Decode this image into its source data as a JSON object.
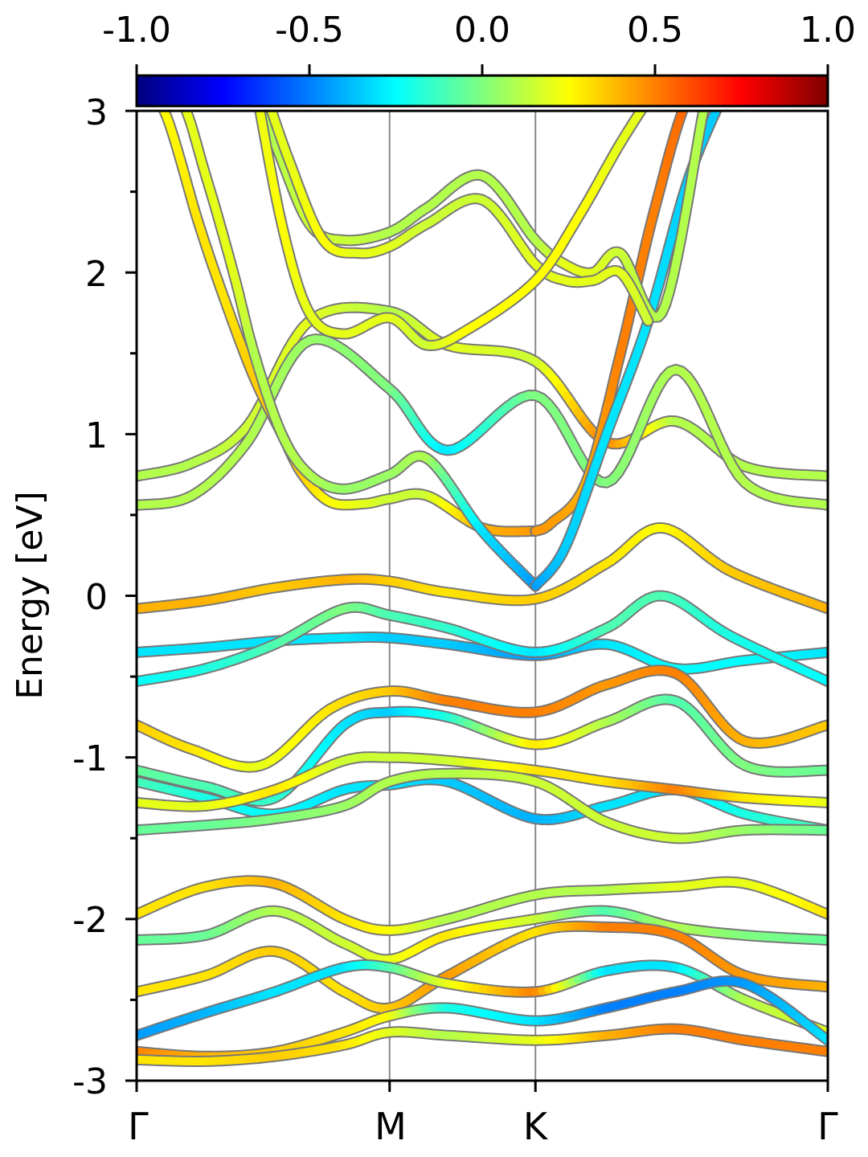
{
  "chart_data": {
    "type": "line",
    "title": "",
    "xlabel": "",
    "ylabel": "Energy [eV]",
    "xlim": [
      0,
      1
    ],
    "ylim": [
      -3,
      3
    ],
    "x_ticks": [
      {
        "label": "Γ",
        "x": 0.0
      },
      {
        "label": "M",
        "x": 0.366
      },
      {
        "label": "K",
        "x": 0.577
      },
      {
        "label": "Γ",
        "x": 1.0
      }
    ],
    "y_ticks": [
      {
        "label": "3",
        "value": 3
      },
      {
        "label": "2",
        "value": 2
      },
      {
        "label": "1",
        "value": 1
      },
      {
        "label": "0",
        "value": 0
      },
      {
        "label": "-1",
        "value": -1
      },
      {
        "label": "-2",
        "value": -2
      },
      {
        "label": "-3",
        "value": -3
      }
    ],
    "colorbar": {
      "ticks": [
        "-1.0",
        "-0.5",
        "0.0",
        "0.5",
        "1.0"
      ],
      "range": [
        -1,
        1
      ],
      "colormap": "jet"
    },
    "colormap_stops": [
      "#00007f",
      "#0000ff",
      "#007fff",
      "#00ffff",
      "#7fff7f",
      "#ffff00",
      "#ff7f00",
      "#ff0000",
      "#7f0000"
    ],
    "band_outline_color": "#777777",
    "series": [
      {
        "x": [
          0,
          0.08,
          0.16,
          0.25,
          0.366,
          0.45,
          0.577,
          0.68,
          0.78,
          0.88,
          1.0
        ],
        "y": [
          0.74,
          0.82,
          1.05,
          1.7,
          1.76,
          1.55,
          1.45,
          0.95,
          1.08,
          0.8,
          0.74
        ],
        "c": [
          0.1,
          0.1,
          0.15,
          0.2,
          0.1,
          0.2,
          0.15,
          0.5,
          0.1,
          0.1,
          0.1
        ]
      },
      {
        "x": [
          0,
          0.08,
          0.16,
          0.25,
          0.366,
          0.45,
          0.577,
          0.68,
          0.78,
          0.88,
          1.0
        ],
        "y": [
          0.56,
          0.62,
          0.95,
          1.58,
          1.28,
          0.9,
          1.24,
          0.7,
          1.4,
          0.7,
          0.56
        ],
        "c": [
          0.1,
          0.1,
          0.1,
          0.05,
          0.0,
          -0.3,
          0.0,
          0.0,
          0.1,
          0.1,
          0.1
        ]
      },
      {
        "x": [
          0,
          0.1,
          0.2,
          0.3,
          0.366,
          0.45,
          0.577,
          0.68,
          0.76,
          0.86,
          1.0
        ],
        "y": [
          -0.08,
          -0.03,
          0.05,
          0.1,
          0.09,
          0.02,
          -0.02,
          0.2,
          0.42,
          0.15,
          -0.08
        ],
        "c": [
          0.4,
          0.4,
          0.35,
          0.4,
          0.35,
          0.3,
          0.35,
          0.3,
          0.25,
          0.35,
          0.4
        ]
      },
      {
        "x": [
          0,
          0.1,
          0.2,
          0.3,
          0.366,
          0.45,
          0.577,
          0.68,
          0.78,
          0.88,
          1.0
        ],
        "y": [
          -0.35,
          -0.32,
          -0.28,
          -0.26,
          -0.26,
          -0.3,
          -0.37,
          -0.3,
          -0.45,
          -0.4,
          -0.35
        ],
        "c": [
          -0.3,
          -0.3,
          -0.3,
          -0.3,
          -0.35,
          -0.35,
          -0.45,
          -0.3,
          -0.25,
          -0.25,
          -0.3
        ]
      },
      {
        "x": [
          0,
          0.1,
          0.2,
          0.3,
          0.366,
          0.45,
          0.577,
          0.68,
          0.76,
          0.86,
          1.0
        ],
        "y": [
          -0.53,
          -0.45,
          -0.3,
          -0.08,
          -0.12,
          -0.2,
          -0.35,
          -0.2,
          0.0,
          -0.25,
          -0.53
        ],
        "c": [
          -0.25,
          -0.2,
          -0.1,
          0.0,
          -0.1,
          -0.15,
          -0.3,
          -0.1,
          -0.1,
          -0.2,
          -0.25
        ]
      },
      {
        "x": [
          0,
          0.08,
          0.18,
          0.28,
          0.366,
          0.45,
          0.577,
          0.68,
          0.78,
          0.88,
          1.0
        ],
        "y": [
          -0.8,
          -0.95,
          -1.05,
          -0.7,
          -0.59,
          -0.65,
          -0.72,
          -0.55,
          -0.48,
          -0.9,
          -0.8
        ],
        "c": [
          0.35,
          0.3,
          0.2,
          0.3,
          0.35,
          0.5,
          0.5,
          0.45,
          0.5,
          0.4,
          0.35
        ]
      },
      {
        "x": [
          0,
          0.1,
          0.2,
          0.3,
          0.366,
          0.45,
          0.577,
          0.68,
          0.78,
          0.88,
          1.0
        ],
        "y": [
          -1.08,
          -1.18,
          -1.25,
          -0.8,
          -0.72,
          -0.75,
          -0.92,
          -0.78,
          -0.65,
          -1.05,
          -1.08
        ],
        "c": [
          -0.05,
          -0.1,
          -0.15,
          -0.3,
          -0.35,
          -0.2,
          0.3,
          0.1,
          -0.1,
          0.0,
          -0.05
        ]
      },
      {
        "x": [
          0,
          0.1,
          0.2,
          0.3,
          0.366,
          0.45,
          0.577,
          0.68,
          0.78,
          0.88,
          1.0
        ],
        "y": [
          -1.15,
          -1.25,
          -1.35,
          -1.2,
          -1.17,
          -1.15,
          -1.38,
          -1.3,
          -1.2,
          -1.35,
          -1.45
        ],
        "c": [
          -0.1,
          -0.2,
          -0.25,
          -0.3,
          -0.3,
          -0.35,
          -0.4,
          -0.3,
          -0.3,
          -0.2,
          -0.1
        ]
      },
      {
        "x": [
          0,
          0.1,
          0.2,
          0.3,
          0.366,
          0.45,
          0.577,
          0.68,
          0.78,
          0.88,
          1.0
        ],
        "y": [
          -1.28,
          -1.3,
          -1.2,
          -1.02,
          -1.0,
          -1.02,
          -1.08,
          -1.15,
          -1.2,
          -1.25,
          -1.28
        ],
        "c": [
          0.2,
          0.2,
          0.3,
          0.15,
          0.15,
          0.15,
          0.3,
          0.3,
          0.5,
          0.3,
          0.2
        ]
      },
      {
        "x": [
          0,
          0.1,
          0.2,
          0.3,
          0.366,
          0.45,
          0.577,
          0.68,
          0.78,
          0.88,
          1.0
        ],
        "y": [
          -1.45,
          -1.42,
          -1.38,
          -1.3,
          -1.15,
          -1.1,
          -1.15,
          -1.4,
          -1.5,
          -1.45,
          -1.45
        ],
        "c": [
          -0.05,
          -0.05,
          0.0,
          0.05,
          0.1,
          0.1,
          0.15,
          0.15,
          0.15,
          0.05,
          -0.05
        ]
      },
      {
        "x": [
          0,
          0.1,
          0.2,
          0.3,
          0.366,
          0.45,
          0.577,
          0.68,
          0.78,
          0.88,
          1.0
        ],
        "y": [
          -1.97,
          -1.8,
          -1.78,
          -2.0,
          -2.07,
          -2.0,
          -1.85,
          -1.82,
          -1.8,
          -1.78,
          -1.97
        ],
        "c": [
          0.3,
          0.3,
          0.4,
          0.3,
          0.25,
          0.1,
          0.1,
          0.1,
          0.2,
          0.2,
          0.3
        ]
      },
      {
        "x": [
          0,
          0.1,
          0.2,
          0.3,
          0.366,
          0.45,
          0.577,
          0.68,
          0.78,
          0.88,
          1.0
        ],
        "y": [
          -2.13,
          -2.1,
          -1.95,
          -2.15,
          -2.25,
          -2.1,
          -2.0,
          -1.95,
          -2.05,
          -2.1,
          -2.13
        ],
        "c": [
          -0.05,
          -0.05,
          0.1,
          0.15,
          0.2,
          0.3,
          0.15,
          -0.1,
          0.1,
          0.0,
          -0.05
        ]
      },
      {
        "x": [
          0,
          0.1,
          0.2,
          0.3,
          0.366,
          0.45,
          0.577,
          0.68,
          0.78,
          0.88,
          1.0
        ],
        "y": [
          -2.45,
          -2.35,
          -2.2,
          -2.45,
          -2.55,
          -2.35,
          -2.08,
          -2.05,
          -2.1,
          -2.35,
          -2.42
        ],
        "c": [
          0.3,
          0.3,
          0.35,
          0.3,
          0.35,
          0.45,
          0.3,
          0.5,
          0.5,
          0.45,
          0.4
        ]
      },
      {
        "x": [
          0,
          0.1,
          0.2,
          0.3,
          0.366,
          0.45,
          0.577,
          0.68,
          0.78,
          0.88,
          1.0
        ],
        "y": [
          -2.72,
          -2.58,
          -2.45,
          -2.3,
          -2.3,
          -2.4,
          -2.45,
          -2.32,
          -2.3,
          -2.5,
          -2.7
        ],
        "c": [
          -0.45,
          -0.4,
          -0.3,
          -0.3,
          -0.1,
          0.2,
          0.5,
          -0.3,
          -0.3,
          0.1,
          0.2
        ]
      },
      {
        "x": [
          0,
          0.1,
          0.2,
          0.3,
          0.366,
          0.45,
          0.577,
          0.68,
          0.78,
          0.88,
          1.0
        ],
        "y": [
          -2.82,
          -2.85,
          -2.82,
          -2.7,
          -2.6,
          -2.55,
          -2.63,
          -2.55,
          -2.45,
          -2.4,
          -2.75
        ],
        "c": [
          0.5,
          0.4,
          0.35,
          0.3,
          0.25,
          -0.2,
          -0.3,
          -0.5,
          -0.5,
          -0.45,
          -0.3
        ]
      },
      {
        "x": [
          0,
          0.1,
          0.2,
          0.3,
          0.366,
          0.45,
          0.577,
          0.68,
          0.78,
          0.88,
          1.0
        ],
        "y": [
          -2.87,
          -2.88,
          -2.85,
          -2.78,
          -2.7,
          -2.72,
          -2.75,
          -2.72,
          -2.68,
          -2.75,
          -2.82
        ],
        "c": [
          0.3,
          0.3,
          0.35,
          0.3,
          0.2,
          0.1,
          0.2,
          0.4,
          0.5,
          0.5,
          0.5
        ]
      },
      {
        "x": [
          0.0,
          0.04,
          0.09,
          0.13,
          0.17,
          0.21,
          0.24,
          0.28,
          0.33,
          0.366,
          0.42,
          0.5,
          0.577
        ],
        "y": [
          3.15,
          3.0,
          2.3,
          1.8,
          1.35,
          1.0,
          0.75,
          0.58,
          0.57,
          0.6,
          0.62,
          0.42,
          0.4
        ],
        "c": [
          0.2,
          0.25,
          0.3,
          0.3,
          0.35,
          0.35,
          0.35,
          0.25,
          0.2,
          0.15,
          0.15,
          0.4,
          0.45
        ]
      },
      {
        "x": [
          0.577,
          0.6,
          0.65,
          0.7,
          0.75,
          0.8,
          0.85
        ],
        "y": [
          0.4,
          0.45,
          0.7,
          1.5,
          2.4,
          3.1,
          3.2
        ],
        "c": [
          0.45,
          0.45,
          0.4,
          0.5,
          0.5,
          0.55,
          0.55
        ]
      },
      {
        "x": [
          0.0,
          0.06,
          0.1,
          0.14,
          0.17,
          0.21,
          0.25,
          0.3,
          0.366,
          0.42,
          0.5,
          0.577
        ],
        "y": [
          3.2,
          3.1,
          2.6,
          2.0,
          1.5,
          1.0,
          0.75,
          0.66,
          0.75,
          0.85,
          0.4,
          0.06
        ],
        "c": [
          0.15,
          0.2,
          0.2,
          0.2,
          0.1,
          0.1,
          0.1,
          0.05,
          0.05,
          0.1,
          -0.3,
          -0.45
        ]
      },
      {
        "x": [
          0.577,
          0.62,
          0.68,
          0.74,
          0.8,
          0.86
        ],
        "y": [
          0.06,
          0.3,
          1.0,
          1.7,
          2.6,
          3.2
        ],
        "c": [
          -0.45,
          -0.35,
          -0.3,
          -0.3,
          -0.35,
          -0.35
        ]
      },
      {
        "x": [
          0.16,
          0.2,
          0.25,
          0.3,
          0.366,
          0.42,
          0.5,
          0.577,
          0.62,
          0.66,
          0.7,
          0.76,
          0.82
        ],
        "y": [
          3.2,
          2.8,
          2.3,
          2.2,
          2.25,
          2.4,
          2.6,
          2.2,
          2.05,
          2.0,
          2.12,
          1.75,
          3.0
        ],
        "c": [
          0.1,
          0.1,
          0.15,
          0.15,
          0.1,
          0.1,
          0.1,
          0.1,
          0.2,
          0.2,
          0.15,
          0.1,
          0.1
        ]
      },
      {
        "x": [
          0.18,
          0.22,
          0.27,
          0.32,
          0.366,
          0.42,
          0.5,
          0.577,
          0.62,
          0.66,
          0.7,
          0.74
        ],
        "y": [
          3.2,
          2.7,
          2.2,
          2.12,
          2.16,
          2.3,
          2.45,
          2.05,
          1.95,
          1.95,
          2.0,
          1.7
        ],
        "c": [
          0.2,
          0.2,
          0.25,
          0.2,
          0.2,
          0.15,
          0.15,
          0.2,
          0.2,
          0.2,
          0.2,
          0.15
        ]
      },
      {
        "x": [
          0.17,
          0.21,
          0.25,
          0.3,
          0.366,
          0.42,
          0.48,
          0.577,
          0.64,
          0.7,
          0.76
        ],
        "y": [
          3.2,
          2.3,
          1.75,
          1.62,
          1.72,
          1.55,
          1.65,
          1.95,
          2.35,
          2.8,
          3.2
        ],
        "c": [
          0.2,
          0.25,
          0.2,
          0.2,
          0.2,
          0.15,
          0.25,
          0.25,
          0.25,
          0.2,
          0.2
        ]
      }
    ]
  }
}
